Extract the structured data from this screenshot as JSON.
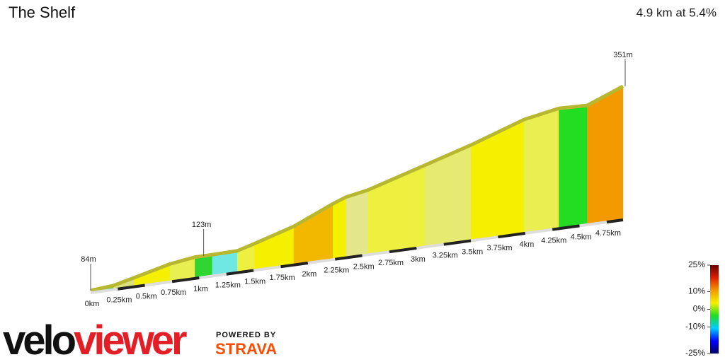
{
  "chart_data": {
    "type": "elevation-profile",
    "title": "The Shelf",
    "subtitle": "4.9 km at 5.4%",
    "x": [
      0,
      0.21,
      0.4,
      0.73,
      0.96,
      1.12,
      1.35,
      1.51,
      1.87,
      2.23,
      2.35,
      2.55,
      3.08,
      3.5,
      3.99,
      4.31,
      4.57,
      4.9
    ],
    "values": [
      84,
      88,
      98,
      116,
      123,
      123,
      124,
      134,
      158,
      193,
      203,
      211,
      246,
      274,
      311,
      324,
      322,
      351
    ],
    "segment_colors": [
      "#44c444",
      "#dde07a",
      "#f5f000",
      "#e8ef50",
      "#2fd62f",
      "#6ee8e0",
      "#eef040",
      "#f5f000",
      "#f2b800",
      "#f5f000",
      "#e3e68a",
      "#eef040",
      "#e6ea70",
      "#f5f000",
      "#eaee50",
      "#22dd22",
      "#f29a00"
    ],
    "ridge_color": "#b8b830",
    "xlim": [
      0,
      4.9
    ],
    "ylim": [
      84,
      351
    ],
    "xticks": [
      {
        "value": 0,
        "label": "0km"
      },
      {
        "value": 0.25,
        "label": "0.25km"
      },
      {
        "value": 0.5,
        "label": "0.5km"
      },
      {
        "value": 0.75,
        "label": "0.75km"
      },
      {
        "value": 1,
        "label": "1km"
      },
      {
        "value": 1.25,
        "label": "1.25km"
      },
      {
        "value": 1.5,
        "label": "1.5km"
      },
      {
        "value": 1.75,
        "label": "1.75km"
      },
      {
        "value": 2,
        "label": "2km"
      },
      {
        "value": 2.25,
        "label": "2.25km"
      },
      {
        "value": 2.5,
        "label": "2.5km"
      },
      {
        "value": 2.75,
        "label": "2.75km"
      },
      {
        "value": 3,
        "label": "3km"
      },
      {
        "value": 3.25,
        "label": "3.25km"
      },
      {
        "value": 3.5,
        "label": "3.5km"
      },
      {
        "value": 3.75,
        "label": "3.75km"
      },
      {
        "value": 4,
        "label": "4km"
      },
      {
        "value": 4.25,
        "label": "4.25km"
      },
      {
        "value": 4.5,
        "label": "4.5km"
      },
      {
        "value": 4.75,
        "label": "4.75km"
      }
    ],
    "annotations": [
      {
        "x": 0,
        "y": 84,
        "label": "84m"
      },
      {
        "x": 1.04,
        "y": 123,
        "label": "123m"
      },
      {
        "x": 4.9,
        "y": 351,
        "label": "351m"
      }
    ],
    "colorbar": {
      "lim": [
        -25,
        25
      ],
      "ticks": [
        {
          "value": 25,
          "label": "25%"
        },
        {
          "value": 10,
          "label": "10%"
        },
        {
          "value": 0,
          "label": "0%"
        },
        {
          "value": -10,
          "label": "-10%"
        },
        {
          "value": -25,
          "label": "-25%"
        }
      ],
      "colors": [
        "#000066",
        "#0000ff",
        "#00ccff",
        "#22dd22",
        "#f5f000",
        "#f29a00",
        "#e02000",
        "#660000"
      ]
    }
  },
  "branding": {
    "logo_left": "velo",
    "logo_right": "viewer",
    "powered_by": "POWERED BY",
    "strava": "STRAVA"
  }
}
